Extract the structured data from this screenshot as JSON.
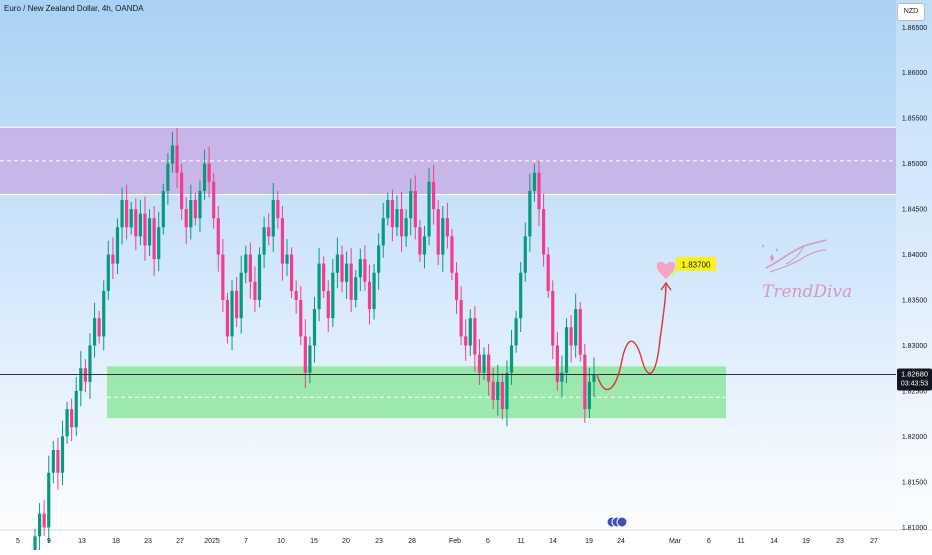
{
  "header": {
    "title": "Euro / New Zealand Dollar, 4h, OANDA",
    "currency": "NZD"
  },
  "colors": {
    "bull": "#089981",
    "bear": "#f23d8c",
    "resistance_zone": "#c9a6e3",
    "support_zone": "#7fe38f",
    "price_line": "#131722",
    "projection": "#e1343a",
    "target_label_bg": "#f7f21a",
    "heart": "#f5a3c7",
    "brand": "#d49ac2"
  },
  "chart_data": {
    "type": "candlestick",
    "title": "Euro / New Zealand Dollar, 4h, OANDA",
    "x_tick_labels": [
      "5",
      "9",
      "13",
      "18",
      "23",
      "27",
      "2025",
      "7",
      "10",
      "15",
      "20",
      "23",
      "28",
      "Feb",
      "6",
      "11",
      "14",
      "19",
      "24",
      "Mar",
      "6",
      "11",
      "14",
      "19",
      "23",
      "27"
    ],
    "y_tick_labels": [
      "1.86500",
      "1.86000",
      "1.85500",
      "1.85000",
      "1.84500",
      "1.84000",
      "1.83500",
      "1.83000",
      "1.82500",
      "1.82000",
      "1.81500",
      "1.81000"
    ],
    "ylim": [
      1.8075,
      1.868
    ],
    "resistance_zone": {
      "low": 1.8466,
      "high": 1.854,
      "mid": 1.8503
    },
    "support_zone": {
      "low": 1.822,
      "high": 1.8277,
      "mid": 1.8243
    },
    "current_price": "1.82680",
    "countdown": "03:43:53",
    "target": {
      "label": "1.83700",
      "value": 1.837
    },
    "grid": false,
    "closes": [
      1.809,
      1.8115,
      1.81,
      1.816,
      1.8185,
      1.816,
      1.82,
      1.823,
      1.821,
      1.825,
      1.8275,
      1.826,
      1.83,
      1.833,
      1.831,
      1.836,
      1.84,
      1.839,
      1.843,
      1.846,
      1.843,
      1.845,
      1.842,
      1.8445,
      1.841,
      1.844,
      1.8395,
      1.843,
      1.847,
      1.85,
      1.852,
      1.849,
      1.845,
      1.843,
      1.846,
      1.844,
      1.847,
      1.85,
      1.848,
      1.844,
      1.84,
      1.835,
      1.831,
      1.836,
      1.833,
      1.838,
      1.84,
      1.837,
      1.835,
      1.84,
      1.843,
      1.842,
      1.846,
      1.844,
      1.839,
      1.84,
      1.836,
      1.835,
      1.831,
      1.827,
      1.83,
      1.834,
      1.839,
      1.836,
      1.833,
      1.838,
      1.84,
      1.837,
      1.839,
      1.835,
      1.8375,
      1.8395,
      1.837,
      1.834,
      1.838,
      1.841,
      1.844,
      1.846,
      1.843,
      1.845,
      1.842,
      1.844,
      1.847,
      1.843,
      1.84,
      1.842,
      1.848,
      1.845,
      1.84,
      1.844,
      1.842,
      1.838,
      1.835,
      1.831,
      1.83,
      1.833,
      1.829,
      1.827,
      1.829,
      1.826,
      1.824,
      1.826,
      1.823,
      1.827,
      1.83,
      1.833,
      1.838,
      1.842,
      1.847,
      1.849,
      1.845,
      1.84,
      1.836,
      1.83,
      1.826,
      1.827,
      1.832,
      1.83,
      1.834,
      1.829,
      1.823,
      1.826,
      1.8268
    ]
  }
}
